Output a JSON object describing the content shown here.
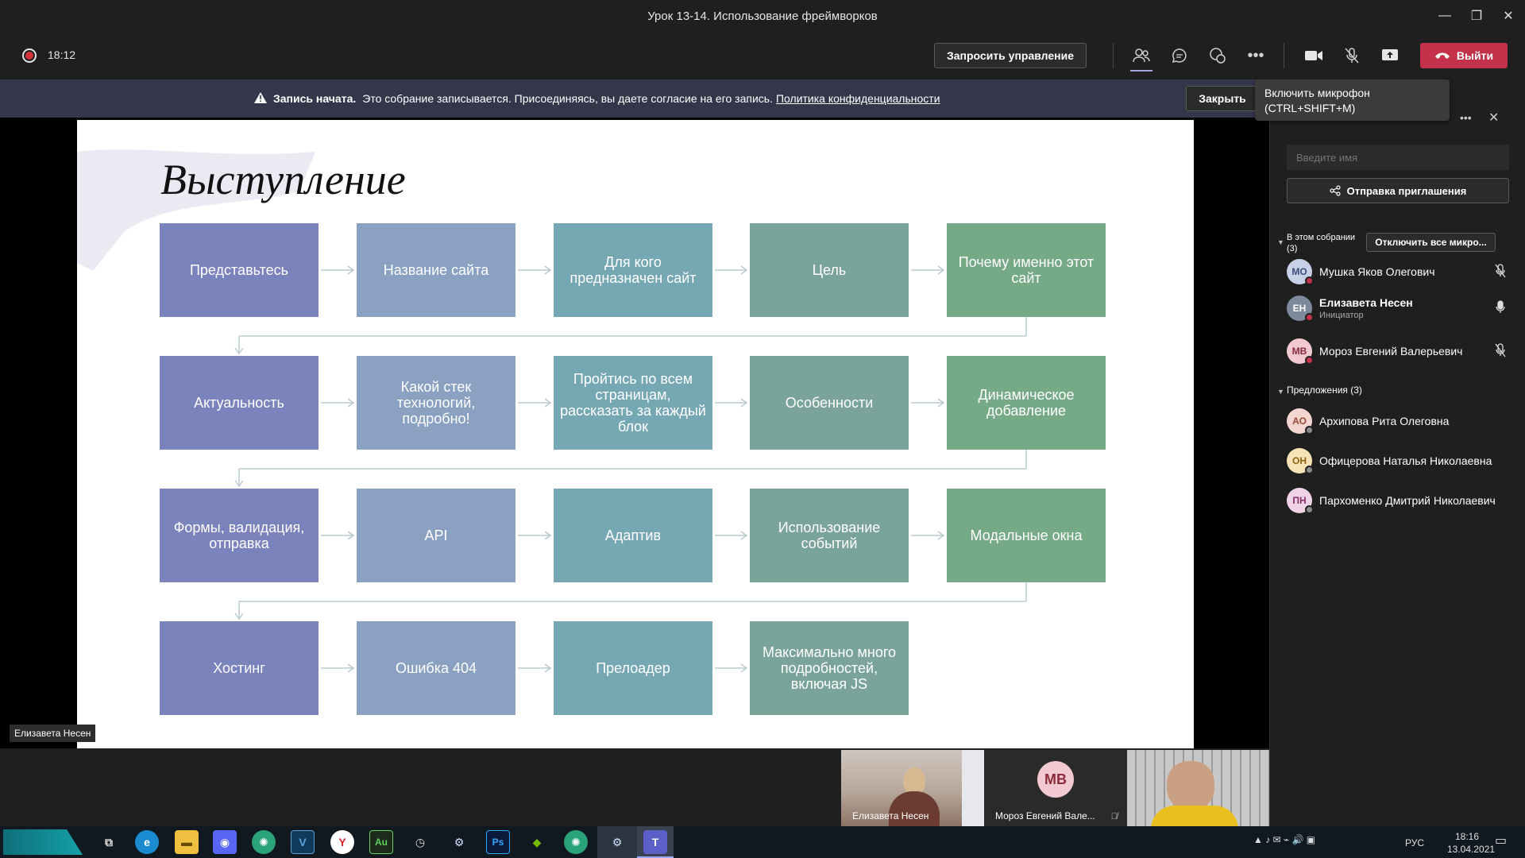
{
  "window": {
    "title": "Урок 13-14. Использование фреймворков"
  },
  "toolbar": {
    "timer": "18:12",
    "request_control": "Запросить управление",
    "leave": "Выйти"
  },
  "banner": {
    "bold": "Запись начата.",
    "text": "Это собрание записывается. Присоединяясь, вы даете согласие на его запись.",
    "link": "Политика конфиденциальности",
    "close": "Закрыть"
  },
  "tooltip": {
    "line1": "Включить микрофон",
    "line2": "(CTRL+SHIFT+M)"
  },
  "slide": {
    "title": "Выступление",
    "rows": [
      [
        "Представьтесь",
        "Название сайта",
        "Для кого предназначен сайт",
        "Цель",
        "Почему именно этот сайт"
      ],
      [
        "Актуальность",
        "Какой стек технологий, подробно!",
        "Пройтись по всем страницам, рассказать за каждый блок",
        "Особенности",
        "Динамическое добавление"
      ],
      [
        "Формы, валидация, отправка",
        "API",
        "Адаптив",
        "Использование событий",
        "Модальные окна"
      ],
      [
        "Хостинг",
        "Ошибка 404",
        "Прелоадер",
        "Максимально много подробностей, включая JS"
      ]
    ],
    "presenter_label": "Елизавета Несен"
  },
  "panel": {
    "name_placeholder": "Введите имя",
    "invite_button": "Отправка приглашения",
    "in_meeting_label": "В этом собрании",
    "in_meeting_count": "(3)",
    "mute_all": "Отключить все микро...",
    "participants": [
      {
        "initials": "МО",
        "name": "Мушка Яков Олегович",
        "role": "",
        "avatar_bg": "#c7d2e8",
        "avatar_fg": "#3b4d7a"
      },
      {
        "initials": "ЕН",
        "name": "Елизавета Несен",
        "role": "Инициатор",
        "avatar_bg": "#7d8a99",
        "avatar_fg": "#ffffff"
      },
      {
        "initials": "МВ",
        "name": "Мороз Евгений Валерьевич",
        "role": "",
        "avatar_bg": "#f2c9d0",
        "avatar_fg": "#8a2b3a"
      }
    ],
    "suggestions_label": "Предложения (3)",
    "suggestions": [
      {
        "initials": "АО",
        "name": "Архипова Рита Олеговна",
        "avatar_bg": "#f3d6cf",
        "avatar_fg": "#9a4a38"
      },
      {
        "initials": "ОН",
        "name": "Офицерова Наталья Николаевна",
        "avatar_bg": "#f7e3b5",
        "avatar_fg": "#8a6410"
      },
      {
        "initials": "ПН",
        "name": "Пархоменко Дмитрий Николаевич",
        "avatar_bg": "#f0d3e6",
        "avatar_fg": "#8a2f6c"
      }
    ]
  },
  "video": {
    "tile1_name": "Елизавета Несен",
    "tile2_name": "Мороз Евгений Вале...",
    "tile2_initials": "МВ"
  },
  "taskbar": {
    "lang": "РУС",
    "time": "18:16",
    "date": "13.04.2021"
  },
  "colors": {
    "leave": "#c4314b",
    "banner": "#34374a",
    "accent": "#6264a7"
  }
}
